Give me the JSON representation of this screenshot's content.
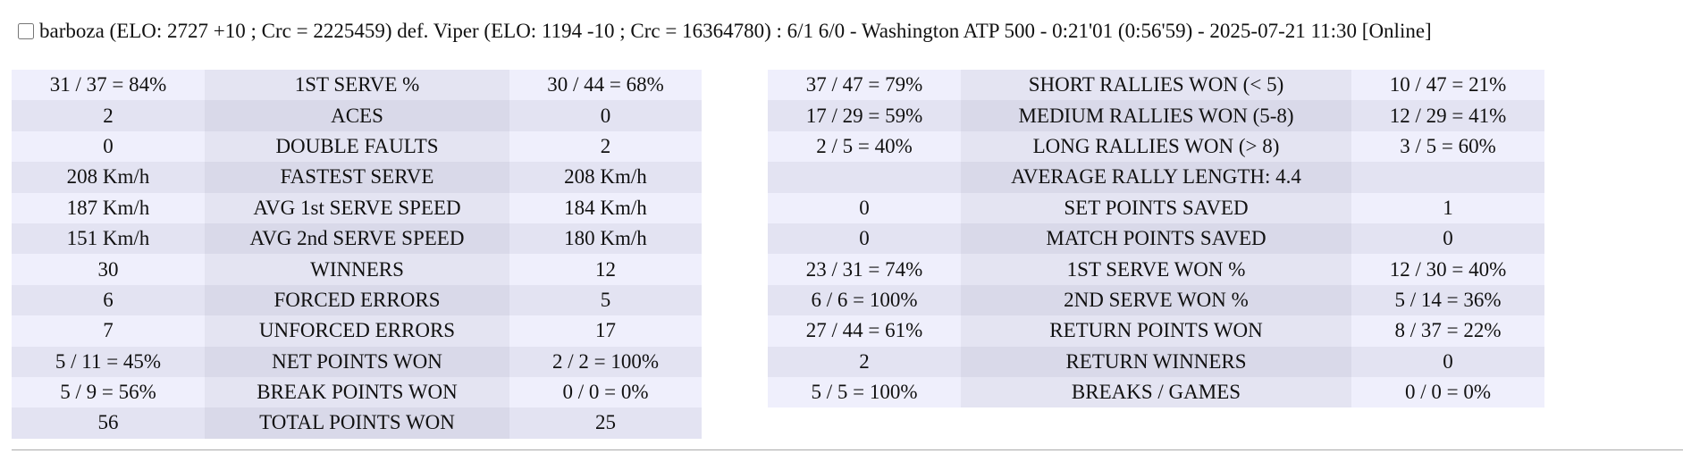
{
  "header": {
    "title": "barboza (ELO: 2727 +10 ; Crc = 2225459) def. Viper (ELO: 1194 -10 ; Crc = 16364780) : 6/1 6/0 - Washington ATP 500 - 0:21'01 (0:56'59) - 2025-07-21 11:30 [Online]"
  },
  "table1": {
    "rows": [
      [
        "31 / 37 = 84%",
        "1ST SERVE %",
        "30 / 44 = 68%"
      ],
      [
        "2",
        "ACES",
        "0"
      ],
      [
        "0",
        "DOUBLE FAULTS",
        "2"
      ],
      [
        "208 Km/h",
        "FASTEST SERVE",
        "208 Km/h"
      ],
      [
        "187 Km/h",
        "AVG 1st SERVE SPEED",
        "184 Km/h"
      ],
      [
        "151 Km/h",
        "AVG 2nd SERVE SPEED",
        "180 Km/h"
      ],
      [
        "30",
        "WINNERS",
        "12"
      ],
      [
        "6",
        "FORCED ERRORS",
        "5"
      ],
      [
        "7",
        "UNFORCED ERRORS",
        "17"
      ],
      [
        "5 / 11 = 45%",
        "NET POINTS WON",
        "2 / 2 = 100%"
      ],
      [
        "5 / 9 = 56%",
        "BREAK POINTS WON",
        "0 / 0 = 0%"
      ],
      [
        "56",
        "TOTAL POINTS WON",
        "25"
      ]
    ]
  },
  "table2": {
    "rows": [
      [
        "37 / 47 = 79%",
        "SHORT RALLIES WON (< 5)",
        "10 / 47 = 21%"
      ],
      [
        "17 / 29 = 59%",
        "MEDIUM RALLIES WON (5-8)",
        "12 / 29 = 41%"
      ],
      [
        "2 / 5 = 40%",
        "LONG RALLIES WON (> 8)",
        "3 / 5 = 60%"
      ],
      [
        null,
        "AVERAGE RALLY LENGTH: 4.4",
        null
      ],
      [
        "0",
        "SET POINTS SAVED",
        "1"
      ],
      [
        "0",
        "MATCH POINTS SAVED",
        "0"
      ],
      [
        "23 / 31 = 74%",
        "1ST SERVE WON %",
        "12 / 30 = 40%"
      ],
      [
        "6 / 6 = 100%",
        "2ND SERVE WON %",
        "5 / 14 = 36%"
      ],
      [
        "27 / 44 = 61%",
        "RETURN POINTS WON",
        "8 / 37 = 22%"
      ],
      [
        "2",
        "RETURN WINNERS",
        "0"
      ],
      [
        "5 / 5 = 100%",
        "BREAKS / GAMES",
        "0 / 0 = 0%"
      ]
    ]
  }
}
